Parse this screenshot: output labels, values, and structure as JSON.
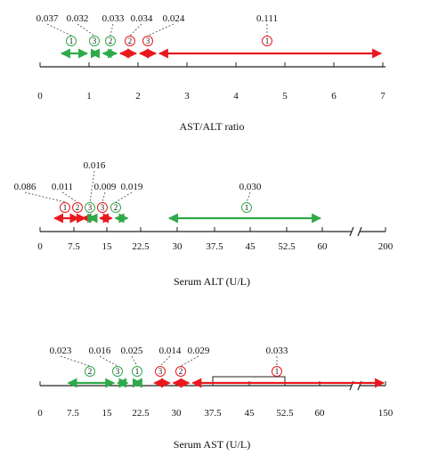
{
  "colors": {
    "red": "#e8191e",
    "green": "#2eaa4a",
    "axis": "#222222",
    "leader": "#444444"
  },
  "panels": [
    {
      "id": "ast-alt-ratio",
      "title": "AST/ALT ratio",
      "ticks": [
        "0",
        "1",
        "2",
        "3",
        "4",
        "5",
        "6",
        "7"
      ],
      "axis_break": false,
      "markers": [
        {
          "num": "1",
          "color": "green",
          "value": "0.037",
          "range": [
            "0.4",
            "1.0"
          ]
        },
        {
          "num": "3",
          "color": "green",
          "value": "0.032",
          "range": [
            "1.0",
            "1.25"
          ]
        },
        {
          "num": "2",
          "color": "green",
          "value": "0.033",
          "range": [
            "1.25",
            "1.6"
          ]
        },
        {
          "num": "2",
          "color": "red",
          "value": "0.034",
          "range": [
            "1.6",
            "2.0"
          ]
        },
        {
          "num": "3",
          "color": "red",
          "value": "0.024",
          "range": [
            "2.0",
            "2.4"
          ]
        },
        {
          "num": "1",
          "color": "red",
          "value": "0.111",
          "range": [
            "2.4",
            "7"
          ]
        }
      ]
    },
    {
      "id": "serum-alt",
      "title": "Serum ALT (U/L)",
      "ticks": [
        "0",
        "7.5",
        "15",
        "22.5",
        "30",
        "37.5",
        "45",
        "52.5",
        "60",
        "200"
      ],
      "axis_break": true,
      "markers": [
        {
          "num": "1",
          "color": "red",
          "value": "0.086",
          "range": [
            "2.8",
            "9"
          ]
        },
        {
          "num": "2",
          "color": "red",
          "value": "0.011",
          "range": [
            "9",
            "10.5"
          ]
        },
        {
          "num": "3",
          "color": "green",
          "value": "0.016",
          "range": [
            "10.5",
            "13"
          ]
        },
        {
          "num": "3",
          "color": "red",
          "value": "0.009",
          "range": [
            "13",
            "16.5"
          ]
        },
        {
          "num": "2",
          "color": "green",
          "value": "0.019",
          "range": [
            "16.5",
            "20"
          ]
        },
        {
          "num": "1",
          "color": "green",
          "value": "0.030",
          "range": [
            "28",
            "60"
          ]
        }
      ]
    },
    {
      "id": "serum-ast",
      "title": "Serum AST (U/L)",
      "ticks": [
        "0",
        "7.5",
        "15",
        "22.5",
        "30",
        "37.5",
        "45",
        "52.5",
        "60",
        "150"
      ],
      "axis_break": true,
      "markers": [
        {
          "num": "2",
          "color": "green",
          "value": "0.023",
          "range": [
            "6",
            "17"
          ]
        },
        {
          "num": "3",
          "color": "green",
          "value": "0.016",
          "range": [
            "17",
            "20"
          ]
        },
        {
          "num": "1",
          "color": "green",
          "value": "0.025",
          "range": [
            "20.5",
            "23"
          ]
        },
        {
          "num": "3",
          "color": "red",
          "value": "0.014",
          "range": [
            "25",
            "29"
          ]
        },
        {
          "num": "2",
          "color": "red",
          "value": "0.029",
          "range": [
            "29",
            "33"
          ]
        },
        {
          "num": "1",
          "color": "red",
          "value": "0.033",
          "range": [
            "33",
            "150"
          ]
        }
      ],
      "bracket": [
        "37.5",
        "52.5"
      ]
    }
  ]
}
